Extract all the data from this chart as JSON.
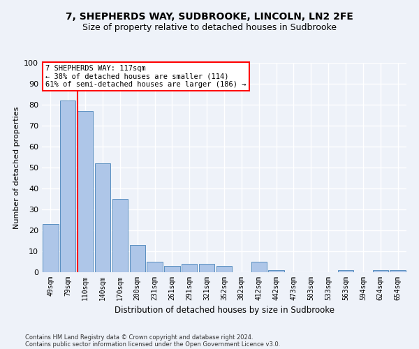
{
  "title1": "7, SHEPHERDS WAY, SUDBROOKE, LINCOLN, LN2 2FE",
  "title2": "Size of property relative to detached houses in Sudbrooke",
  "xlabel": "Distribution of detached houses by size in Sudbrooke",
  "ylabel": "Number of detached properties",
  "categories": [
    "49sqm",
    "79sqm",
    "110sqm",
    "140sqm",
    "170sqm",
    "200sqm",
    "231sqm",
    "261sqm",
    "291sqm",
    "321sqm",
    "352sqm",
    "382sqm",
    "412sqm",
    "442sqm",
    "473sqm",
    "503sqm",
    "533sqm",
    "563sqm",
    "594sqm",
    "624sqm",
    "654sqm"
  ],
  "values": [
    23,
    82,
    77,
    52,
    35,
    13,
    5,
    3,
    4,
    4,
    3,
    0,
    5,
    1,
    0,
    0,
    0,
    1,
    0,
    1,
    1
  ],
  "bar_color": "#aec6e8",
  "bar_edge_color": "#5a8fc0",
  "redline_index": 2,
  "annotation_text": "7 SHEPHERDS WAY: 117sqm\n← 38% of detached houses are smaller (114)\n61% of semi-detached houses are larger (186) →",
  "annotation_box_color": "white",
  "annotation_box_edge": "red",
  "ylim": [
    0,
    100
  ],
  "yticks": [
    0,
    10,
    20,
    30,
    40,
    50,
    60,
    70,
    80,
    90,
    100
  ],
  "footer1": "Contains HM Land Registry data © Crown copyright and database right 2024.",
  "footer2": "Contains public sector information licensed under the Open Government Licence v3.0.",
  "bg_color": "#eef2f9",
  "grid_color": "white",
  "title1_fontsize": 10,
  "title2_fontsize": 9,
  "redline_color": "red",
  "bar_linewidth": 0.7
}
